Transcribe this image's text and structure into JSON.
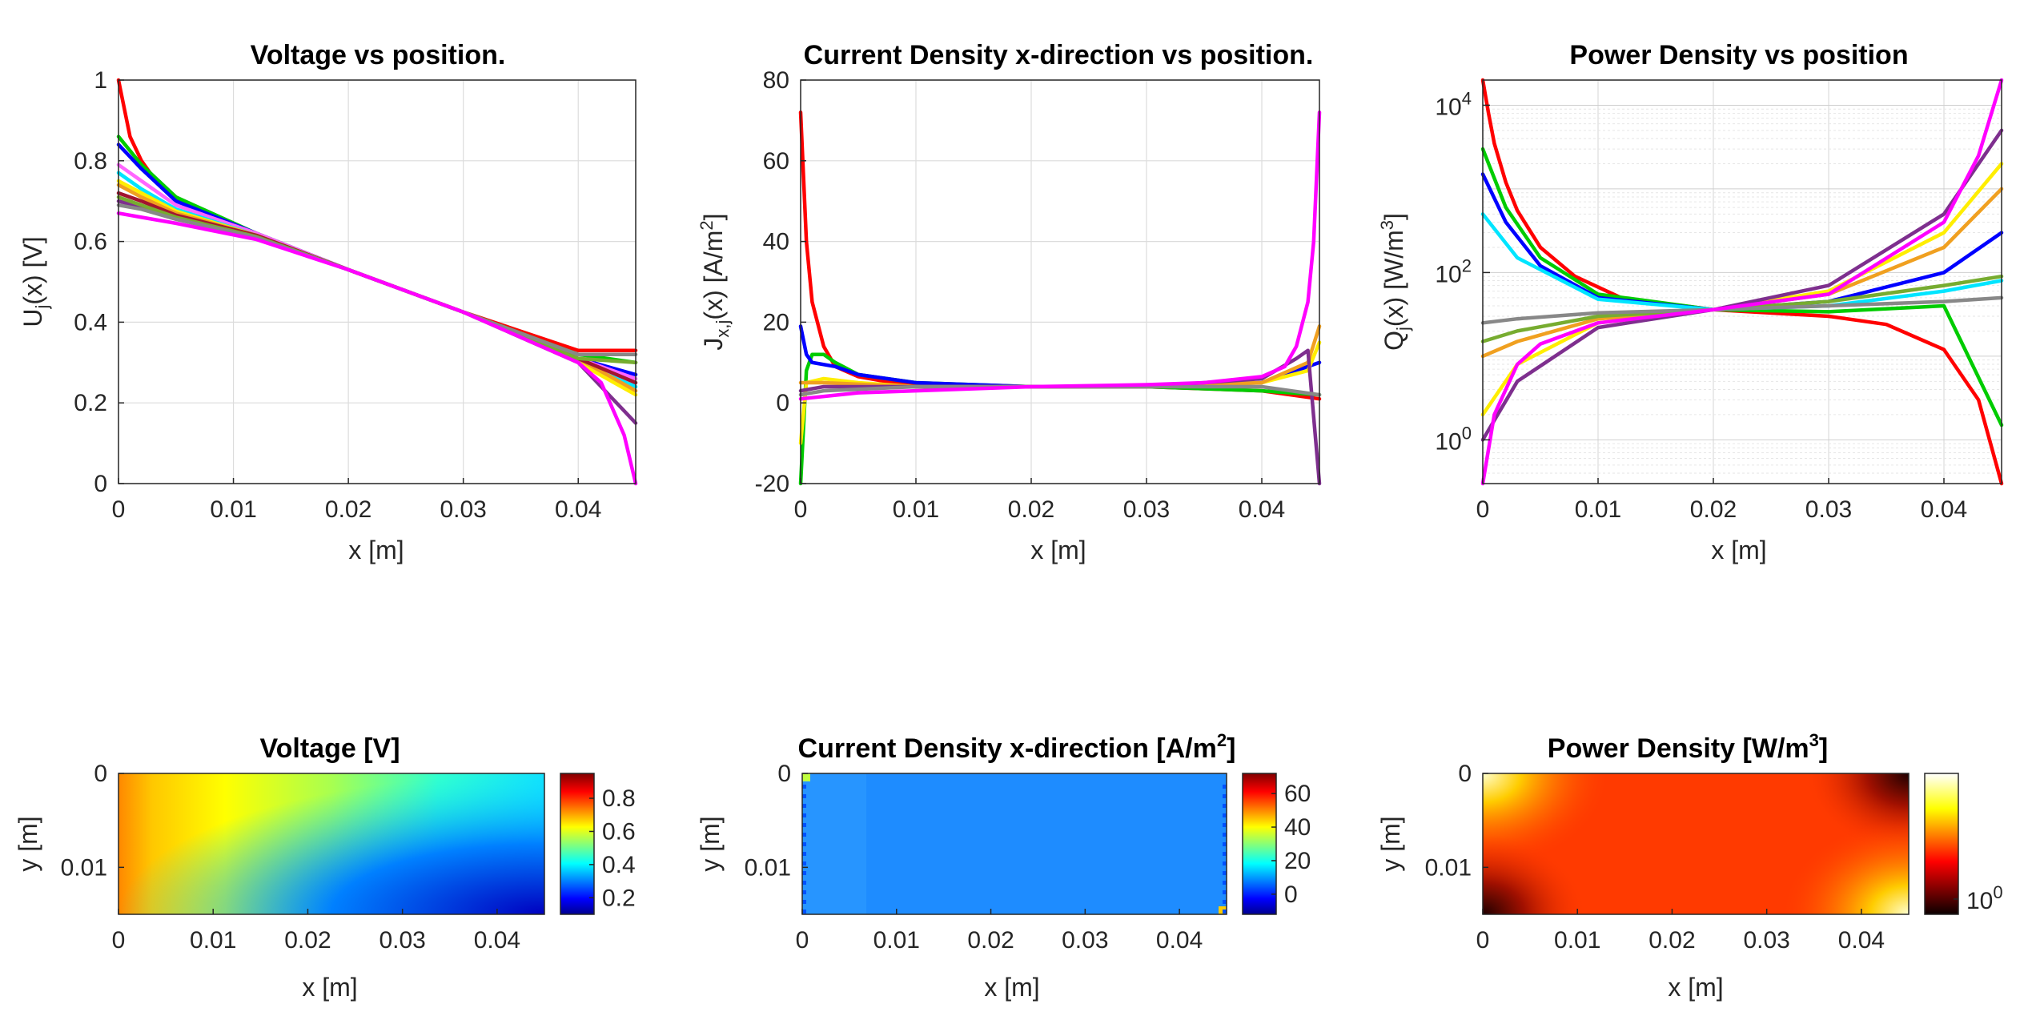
{
  "figure": {
    "panels": [
      {
        "id": "voltage_line",
        "title": "Voltage vs position.",
        "xlabel": "x [m]",
        "ylabel_main": "U",
        "ylabel_sub": "j",
        "ylabel_rest": "(x) [V]",
        "xticks": [
          "0",
          "0.01",
          "0.02",
          "0.03",
          "0.04"
        ],
        "yticks": [
          "0",
          "0.2",
          "0.4",
          "0.6",
          "0.8",
          "1"
        ]
      },
      {
        "id": "current_line",
        "title": "Current Density x-direction vs position.",
        "xlabel": "x [m]",
        "ylabel_main": "J",
        "ylabel_sub": "x,j",
        "ylabel_rest": "(x) [A/m",
        "ylabel_sup": "2",
        "ylabel_end": "]",
        "xticks": [
          "0",
          "0.01",
          "0.02",
          "0.03",
          "0.04"
        ],
        "yticks": [
          "-20",
          "0",
          "20",
          "40",
          "60",
          "80"
        ]
      },
      {
        "id": "power_line",
        "title": "Power Density vs position",
        "xlabel": "x [m]",
        "ylabel_main": "Q",
        "ylabel_sub": "j",
        "ylabel_rest": "(x) [W/m",
        "ylabel_sup": "3",
        "ylabel_end": "]",
        "xticks": [
          "0",
          "0.01",
          "0.02",
          "0.03",
          "0.04"
        ],
        "yticks_base": "10",
        "yticks_exp": [
          "0",
          "2",
          "4"
        ]
      },
      {
        "id": "voltage_map",
        "title": "Voltage [V]",
        "xlabel": "x [m]",
        "ylabel": "y [m]",
        "xticks": [
          "0",
          "0.01",
          "0.02",
          "0.03",
          "0.04"
        ],
        "yticks": [
          "0",
          "0.01"
        ],
        "cticks": [
          "0.2",
          "0.4",
          "0.6",
          "0.8"
        ]
      },
      {
        "id": "current_map",
        "title_main": "Current Density x-direction [A/m",
        "title_sup": "2",
        "title_end": "]",
        "xlabel": "x [m]",
        "ylabel": "y [m]",
        "xticks": [
          "0",
          "0.01",
          "0.02",
          "0.03",
          "0.04"
        ],
        "yticks": [
          "0",
          "0.01"
        ],
        "cticks": [
          "0",
          "20",
          "40",
          "60"
        ]
      },
      {
        "id": "power_map",
        "title_main": "Power Density [W/m",
        "title_sup": "3",
        "title_end": "]",
        "xlabel": "x [m]",
        "ylabel": "y [m]",
        "xticks": [
          "0",
          "0.01",
          "0.02",
          "0.03",
          "0.04"
        ],
        "yticks": [
          "0",
          "0.01"
        ],
        "cticks_base": "10",
        "cticks_exp": [
          "0"
        ]
      }
    ]
  },
  "chart_data": [
    {
      "type": "line",
      "title": "Voltage vs position.",
      "xlabel": "x [m]",
      "ylabel": "U_j(x) [V]",
      "xlim": [
        0,
        0.045
      ],
      "ylim": [
        0,
        1
      ],
      "grid": true,
      "series": [
        {
          "color": "#ff0000",
          "x": [
            0,
            0.0005,
            0.001,
            0.002,
            0.003,
            0.005,
            0.008,
            0.012,
            0.02,
            0.03,
            0.04,
            0.045
          ],
          "y": [
            1.0,
            0.93,
            0.86,
            0.8,
            0.76,
            0.71,
            0.665,
            0.62,
            0.53,
            0.425,
            0.33,
            0.33
          ]
        },
        {
          "color": "#00cc00",
          "x": [
            0,
            0.002,
            0.005,
            0.012,
            0.02,
            0.03,
            0.04,
            0.045
          ],
          "y": [
            0.86,
            0.79,
            0.71,
            0.62,
            0.53,
            0.425,
            0.32,
            0.3
          ]
        },
        {
          "color": "#0000ff",
          "x": [
            0,
            0.002,
            0.005,
            0.012,
            0.02,
            0.03,
            0.04,
            0.045
          ],
          "y": [
            0.84,
            0.78,
            0.7,
            0.62,
            0.53,
            0.425,
            0.31,
            0.27
          ]
        },
        {
          "color": "#ff66ff",
          "x": [
            0,
            0.002,
            0.005,
            0.012,
            0.02,
            0.03,
            0.04,
            0.045
          ],
          "y": [
            0.79,
            0.75,
            0.69,
            0.62,
            0.53,
            0.425,
            0.31,
            0.26
          ]
        },
        {
          "color": "#00e5ff",
          "x": [
            0,
            0.002,
            0.005,
            0.012,
            0.02,
            0.03,
            0.04,
            0.045
          ],
          "y": [
            0.77,
            0.73,
            0.68,
            0.615,
            0.53,
            0.425,
            0.3,
            0.24
          ]
        },
        {
          "color": "#ffee00",
          "x": [
            0,
            0.002,
            0.005,
            0.012,
            0.02,
            0.03,
            0.04,
            0.045
          ],
          "y": [
            0.75,
            0.72,
            0.675,
            0.615,
            0.53,
            0.425,
            0.3,
            0.22
          ]
        },
        {
          "color": "#f0a020",
          "x": [
            0,
            0.002,
            0.005,
            0.012,
            0.02,
            0.03,
            0.04,
            0.045
          ],
          "y": [
            0.74,
            0.71,
            0.67,
            0.615,
            0.53,
            0.425,
            0.31,
            0.23
          ]
        },
        {
          "color": "#7e2f8e",
          "x": [
            0,
            0.002,
            0.005,
            0.012,
            0.02,
            0.03,
            0.04,
            0.045
          ],
          "y": [
            0.7,
            0.685,
            0.66,
            0.61,
            0.53,
            0.425,
            0.3,
            0.15
          ]
        },
        {
          "color": "#a2142f",
          "x": [
            0,
            0.002,
            0.005,
            0.012,
            0.02,
            0.03,
            0.04,
            0.045
          ],
          "y": [
            0.72,
            0.7,
            0.665,
            0.615,
            0.53,
            0.425,
            0.31,
            0.25
          ]
        },
        {
          "color": "#77ac30",
          "x": [
            0,
            0.002,
            0.005,
            0.012,
            0.02,
            0.03,
            0.04,
            0.045
          ],
          "y": [
            0.71,
            0.69,
            0.66,
            0.612,
            0.53,
            0.425,
            0.31,
            0.3
          ]
        },
        {
          "color": "#888888",
          "x": [
            0,
            0.002,
            0.005,
            0.012,
            0.02,
            0.03,
            0.04,
            0.045
          ],
          "y": [
            0.69,
            0.68,
            0.655,
            0.61,
            0.53,
            0.425,
            0.32,
            0.32
          ]
        },
        {
          "color": "#ff00ff",
          "x": [
            0,
            0.002,
            0.005,
            0.012,
            0.02,
            0.03,
            0.04,
            0.042,
            0.044,
            0.045
          ],
          "y": [
            0.67,
            0.66,
            0.645,
            0.605,
            0.53,
            0.425,
            0.3,
            0.25,
            0.12,
            0.0
          ]
        }
      ]
    },
    {
      "type": "line",
      "title": "Current Density x-direction vs position.",
      "xlabel": "x [m]",
      "ylabel": "J_x,j(x) [A/m^2]",
      "xlim": [
        0,
        0.045
      ],
      "ylim": [
        -20,
        80
      ],
      "grid": true,
      "series": [
        {
          "color": "#ff0000",
          "x": [
            0,
            0.0005,
            0.001,
            0.002,
            0.003,
            0.005,
            0.008,
            0.012,
            0.02,
            0.03,
            0.04,
            0.045
          ],
          "y": [
            72,
            40,
            25,
            14,
            9,
            6.5,
            5,
            4.5,
            4,
            4,
            3,
            1
          ]
        },
        {
          "color": "#00cc00",
          "x": [
            0,
            0.0005,
            0.001,
            0.002,
            0.003,
            0.005,
            0.01,
            0.02,
            0.03,
            0.04,
            0.045
          ],
          "y": [
            -20,
            8,
            12,
            12,
            10,
            7,
            5,
            4,
            4,
            3,
            2
          ]
        },
        {
          "color": "#0000ff",
          "x": [
            0,
            0.0005,
            0.001,
            0.003,
            0.005,
            0.01,
            0.02,
            0.03,
            0.04,
            0.045
          ],
          "y": [
            19,
            12,
            10,
            9,
            7,
            5,
            4,
            4,
            5,
            10
          ]
        },
        {
          "color": "#ffee00",
          "x": [
            0,
            0.0005,
            0.002,
            0.005,
            0.01,
            0.02,
            0.03,
            0.04,
            0.044,
            0.045
          ],
          "y": [
            -10,
            5,
            6,
            5,
            4,
            4,
            4,
            5,
            8,
            15
          ]
        },
        {
          "color": "#f0a020",
          "x": [
            0,
            0.002,
            0.01,
            0.02,
            0.03,
            0.04,
            0.044,
            0.045
          ],
          "y": [
            5,
            5,
            4,
            4,
            4,
            5,
            10,
            19
          ]
        },
        {
          "color": "#7e2f8e",
          "x": [
            0,
            0.002,
            0.01,
            0.02,
            0.03,
            0.04,
            0.043,
            0.044,
            0.045
          ],
          "y": [
            3,
            4,
            4,
            4,
            4,
            6,
            11,
            13,
            -20
          ]
        },
        {
          "color": "#888888",
          "x": [
            0,
            0.002,
            0.01,
            0.02,
            0.03,
            0.04,
            0.045
          ],
          "y": [
            2,
            3,
            4,
            4,
            4,
            4,
            2
          ]
        },
        {
          "color": "#ff00ff",
          "x": [
            0,
            0.005,
            0.01,
            0.02,
            0.03,
            0.035,
            0.04,
            0.042,
            0.043,
            0.044,
            0.0445,
            0.045
          ],
          "y": [
            1,
            2.5,
            3,
            4,
            4.5,
            5,
            6.5,
            9,
            14,
            25,
            40,
            72
          ]
        }
      ]
    },
    {
      "type": "line",
      "title": "Power Density vs position",
      "xlabel": "x [m]",
      "ylabel": "Q_j(x) [W/m^3]",
      "xlim": [
        0,
        0.045
      ],
      "ylim": [
        0.3,
        20000
      ],
      "yscale": "log",
      "grid": true,
      "series": [
        {
          "color": "#ff0000",
          "x": [
            0,
            0.0005,
            0.001,
            0.002,
            0.003,
            0.005,
            0.008,
            0.012,
            0.02,
            0.03,
            0.035,
            0.04,
            0.043,
            0.045
          ],
          "y": [
            20000,
            8000,
            3500,
            1200,
            550,
            200,
            90,
            50,
            36,
            30,
            24,
            12,
            3,
            0.3
          ]
        },
        {
          "color": "#00cc00",
          "x": [
            0,
            0.002,
            0.005,
            0.01,
            0.02,
            0.03,
            0.04,
            0.045
          ],
          "y": [
            3000,
            600,
            150,
            55,
            36,
            34,
            40,
            1.5
          ]
        },
        {
          "color": "#0000ff",
          "x": [
            0,
            0.002,
            0.005,
            0.01,
            0.02,
            0.03,
            0.04,
            0.045
          ],
          "y": [
            1500,
            400,
            120,
            50,
            36,
            45,
            100,
            300
          ]
        },
        {
          "color": "#00e5ff",
          "x": [
            0,
            0.003,
            0.01,
            0.02,
            0.03,
            0.04,
            0.045
          ],
          "y": [
            500,
            150,
            48,
            36,
            40,
            60,
            80
          ]
        },
        {
          "color": "#ffee00",
          "x": [
            0,
            0.003,
            0.01,
            0.02,
            0.03,
            0.04,
            0.045
          ],
          "y": [
            2,
            8,
            25,
            36,
            60,
            300,
            2000
          ]
        },
        {
          "color": "#f0a020",
          "x": [
            0,
            0.003,
            0.01,
            0.02,
            0.03,
            0.04,
            0.045
          ],
          "y": [
            10,
            15,
            28,
            36,
            55,
            200,
            1000
          ]
        },
        {
          "color": "#7e2f8e",
          "x": [
            0,
            0.003,
            0.01,
            0.02,
            0.03,
            0.04,
            0.045
          ],
          "y": [
            1,
            5,
            22,
            36,
            70,
            500,
            5000
          ]
        },
        {
          "color": "#77ac30",
          "x": [
            0,
            0.003,
            0.01,
            0.02,
            0.03,
            0.04,
            0.045
          ],
          "y": [
            15,
            20,
            30,
            36,
            45,
            70,
            90
          ]
        },
        {
          "color": "#888888",
          "x": [
            0,
            0.003,
            0.01,
            0.02,
            0.03,
            0.04,
            0.045
          ],
          "y": [
            25,
            28,
            33,
            36,
            40,
            45,
            50
          ]
        },
        {
          "color": "#ff00ff",
          "x": [
            0,
            0.001,
            0.003,
            0.005,
            0.01,
            0.02,
            0.03,
            0.04,
            0.043,
            0.045
          ],
          "y": [
            0.3,
            2,
            8,
            14,
            25,
            36,
            55,
            400,
            2500,
            20000
          ]
        }
      ]
    },
    {
      "type": "heatmap",
      "title": "Voltage [V]",
      "xlabel": "x [m]",
      "ylabel": "y [m]",
      "xlim": [
        0,
        0.045
      ],
      "ylim": [
        0,
        0.015
      ],
      "colormap": "jet",
      "clim": [
        0.1,
        0.95
      ],
      "x_profile": [
        0,
        0.01,
        0.02,
        0.03,
        0.04,
        0.045
      ],
      "value_profile": [
        0.72,
        0.62,
        0.53,
        0.42,
        0.33,
        0.3
      ]
    },
    {
      "type": "heatmap",
      "title": "Current Density x-direction [A/m^2]",
      "xlabel": "x [m]",
      "ylabel": "y [m]",
      "xlim": [
        0,
        0.045
      ],
      "ylim": [
        0,
        0.015
      ],
      "colormap": "jet",
      "clim": [
        -12,
        72
      ],
      "typical_value": 6,
      "max_value": 72
    },
    {
      "type": "heatmap",
      "title": "Power Density [W/m^3]",
      "xlabel": "x [m]",
      "ylabel": "y [m]",
      "xlim": [
        0,
        0.045
      ],
      "ylim": [
        0,
        0.015
      ],
      "colormap": "hot",
      "cscale": "log",
      "clim": [
        0.3,
        20000
      ],
      "typical_value": 36
    }
  ]
}
